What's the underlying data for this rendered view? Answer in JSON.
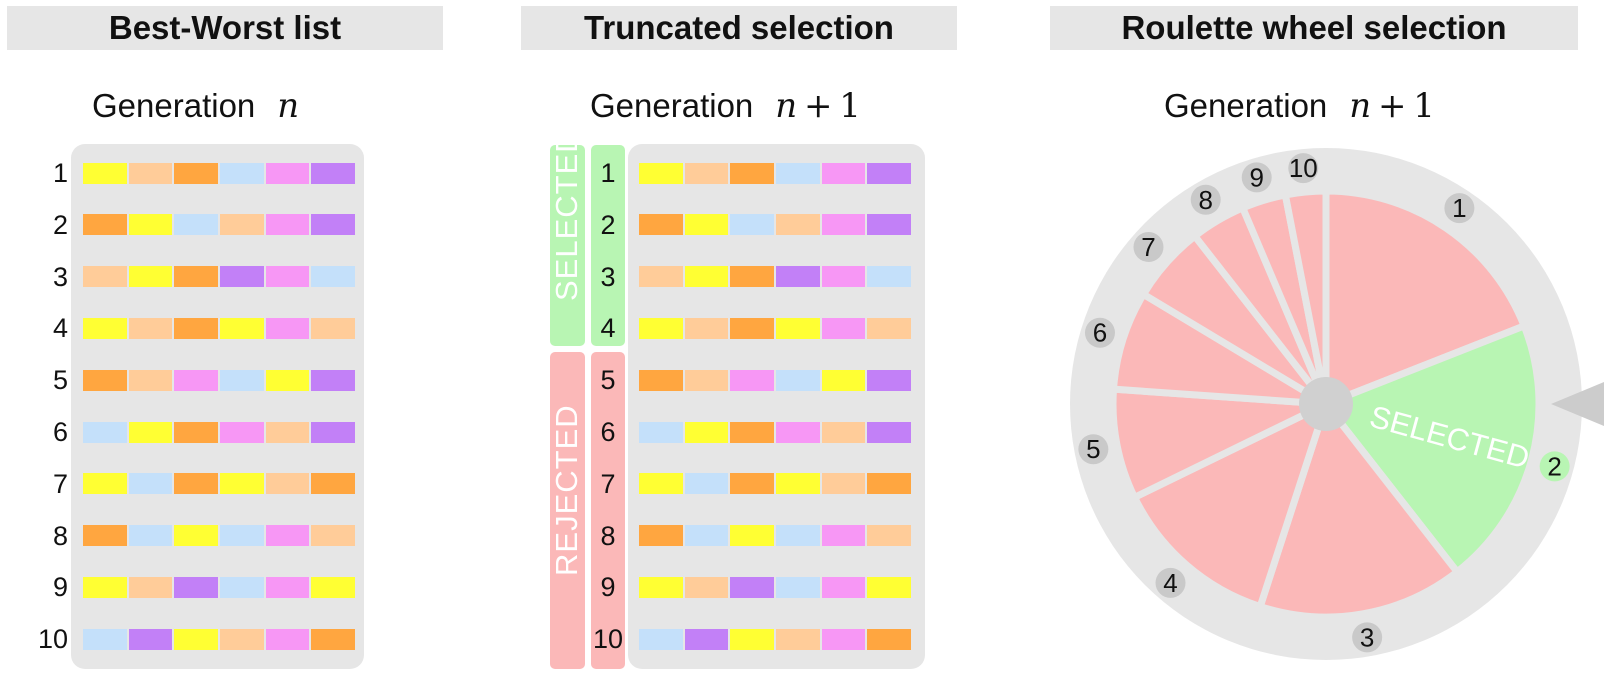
{
  "panels": {
    "best_worst": {
      "title": "Best-Worst list",
      "generation_label": "Generation",
      "generation_math": "n"
    },
    "truncated": {
      "title": "Truncated selection",
      "generation_label": "Generation",
      "generation_math": "n + 1",
      "selected_label": "SELECTED",
      "rejected_label": "REJECTED"
    },
    "roulette": {
      "title": "Roulette wheel selection",
      "generation_label": "Generation",
      "generation_math": "n + 1",
      "selected_label": "SELECTED"
    }
  },
  "colors": {
    "Y": "#ffff33",
    "P": "#ffcc99",
    "O": "#ffa640",
    "B": "#c4e0fa",
    "K": "#f797f5",
    "V": "#c280f7",
    "selected": "#b8f5b3",
    "rejected": "#fbb8b8",
    "wheel_bg": "#e6e6e6",
    "hub": "#d0d0d0",
    "pointer": "#cccccc",
    "badge": "#c9c9c9"
  },
  "chromosomes": [
    {
      "rank": "1",
      "genes": [
        "Y",
        "P",
        "O",
        "B",
        "K",
        "V"
      ]
    },
    {
      "rank": "2",
      "genes": [
        "O",
        "Y",
        "B",
        "P",
        "K",
        "V"
      ]
    },
    {
      "rank": "3",
      "genes": [
        "P",
        "Y",
        "O",
        "V",
        "K",
        "B"
      ]
    },
    {
      "rank": "4",
      "genes": [
        "Y",
        "P",
        "O",
        "Y",
        "K",
        "P"
      ]
    },
    {
      "rank": "5",
      "genes": [
        "O",
        "P",
        "K",
        "B",
        "Y",
        "V"
      ]
    },
    {
      "rank": "6",
      "genes": [
        "B",
        "Y",
        "O",
        "K",
        "P",
        "V"
      ]
    },
    {
      "rank": "7",
      "genes": [
        "Y",
        "B",
        "O",
        "Y",
        "P",
        "O"
      ]
    },
    {
      "rank": "8",
      "genes": [
        "O",
        "B",
        "Y",
        "B",
        "K",
        "P"
      ]
    },
    {
      "rank": "9",
      "genes": [
        "Y",
        "P",
        "V",
        "B",
        "K",
        "Y"
      ]
    },
    {
      "rank": "10",
      "genes": [
        "B",
        "V",
        "Y",
        "P",
        "K",
        "O"
      ]
    }
  ],
  "truncation_cutoff": 4,
  "roulette_wheel": {
    "selected_rank": "2",
    "slices": [
      {
        "rank": "1",
        "start_deg": 0,
        "end_deg": 68.5
      },
      {
        "rank": "2",
        "start_deg": 68.5,
        "end_deg": 142
      },
      {
        "rank": "3",
        "start_deg": 142,
        "end_deg": 198
      },
      {
        "rank": "4",
        "start_deg": 198,
        "end_deg": 244
      },
      {
        "rank": "5",
        "start_deg": 244,
        "end_deg": 274
      },
      {
        "rank": "6",
        "start_deg": 274,
        "end_deg": 301
      },
      {
        "rank": "7",
        "start_deg": 301,
        "end_deg": 322
      },
      {
        "rank": "8",
        "start_deg": 322,
        "end_deg": 337
      },
      {
        "rank": "9",
        "start_deg": 337,
        "end_deg": 349
      },
      {
        "rank": "10",
        "start_deg": 349,
        "end_deg": 360
      }
    ]
  }
}
